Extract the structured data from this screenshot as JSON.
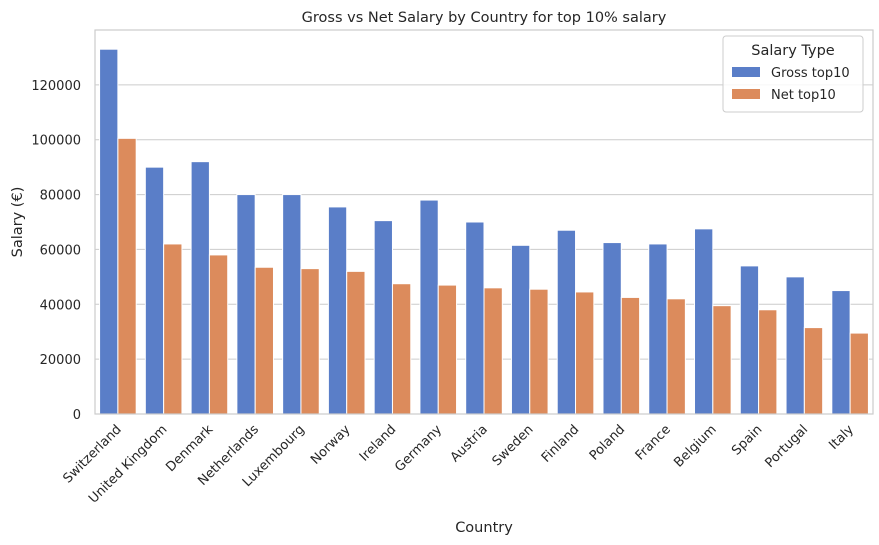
{
  "chart_data": {
    "type": "bar",
    "title": "Gross vs Net Salary by Country for top 10% salary",
    "xlabel": "Country",
    "ylabel": "Salary (€)",
    "ylim": [
      0,
      140000
    ],
    "yticks": [
      0,
      20000,
      40000,
      60000,
      80000,
      100000,
      120000
    ],
    "grid": true,
    "legend": {
      "title": "Salary Type",
      "placement": "top-right"
    },
    "categories": [
      "Switzerland",
      "United Kingdom",
      "Denmark",
      "Netherlands",
      "Luxembourg",
      "Norway",
      "Ireland",
      "Germany",
      "Austria",
      "Sweden",
      "Finland",
      "Poland",
      "France",
      "Belgium",
      "Spain",
      "Portugal",
      "Italy"
    ],
    "series": [
      {
        "name": "Gross top10",
        "color": "#5a7ec8",
        "values": [
          133000,
          90000,
          92000,
          80000,
          80000,
          75500,
          70500,
          78000,
          70000,
          61500,
          67000,
          62500,
          62000,
          67500,
          54000,
          50000,
          45000
        ]
      },
      {
        "name": "Net top10",
        "color": "#dc8b5c",
        "values": [
          100500,
          62000,
          58000,
          53500,
          53000,
          52000,
          47500,
          47000,
          46000,
          45500,
          44500,
          42500,
          42000,
          39500,
          38000,
          31500,
          29500
        ]
      }
    ]
  }
}
